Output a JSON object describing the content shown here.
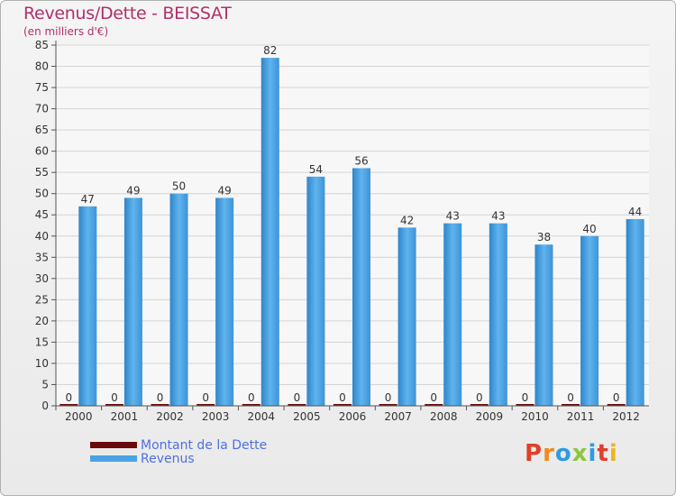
{
  "chart_data": {
    "type": "bar",
    "title": "Revenus/Dette - BEISSAT",
    "subtitle": "(en milliers d'€)",
    "categories": [
      "2000",
      "2001",
      "2002",
      "2003",
      "2004",
      "2005",
      "2006",
      "2007",
      "2008",
      "2009",
      "2010",
      "2011",
      "2012"
    ],
    "series": [
      {
        "name": "Montant de la Dette",
        "color": "#6b0a0a",
        "values": [
          0,
          0,
          0,
          0,
          0,
          0,
          0,
          0,
          0,
          0,
          0,
          0,
          0
        ]
      },
      {
        "name": "Revenus",
        "color": "#4aa3e4",
        "values": [
          47,
          49,
          50,
          49,
          82,
          54,
          56,
          42,
          43,
          43,
          38,
          40,
          44
        ]
      }
    ],
    "ylim": [
      0,
      85
    ],
    "yticks": [
      0,
      5,
      10,
      15,
      20,
      25,
      30,
      35,
      40,
      45,
      50,
      55,
      60,
      65,
      70,
      75,
      80,
      85
    ],
    "grid": true,
    "legend_position": "bottom-left"
  },
  "logo": {
    "text": "Proxiti",
    "letters": [
      "P",
      "r",
      "o",
      "x",
      "i",
      "t",
      "i"
    ],
    "colors": [
      "#e0402a",
      "#f08a1c",
      "#2f9be0",
      "#8cc63f",
      "#2f9be0",
      "#e0402a",
      "#f0b41c"
    ]
  }
}
